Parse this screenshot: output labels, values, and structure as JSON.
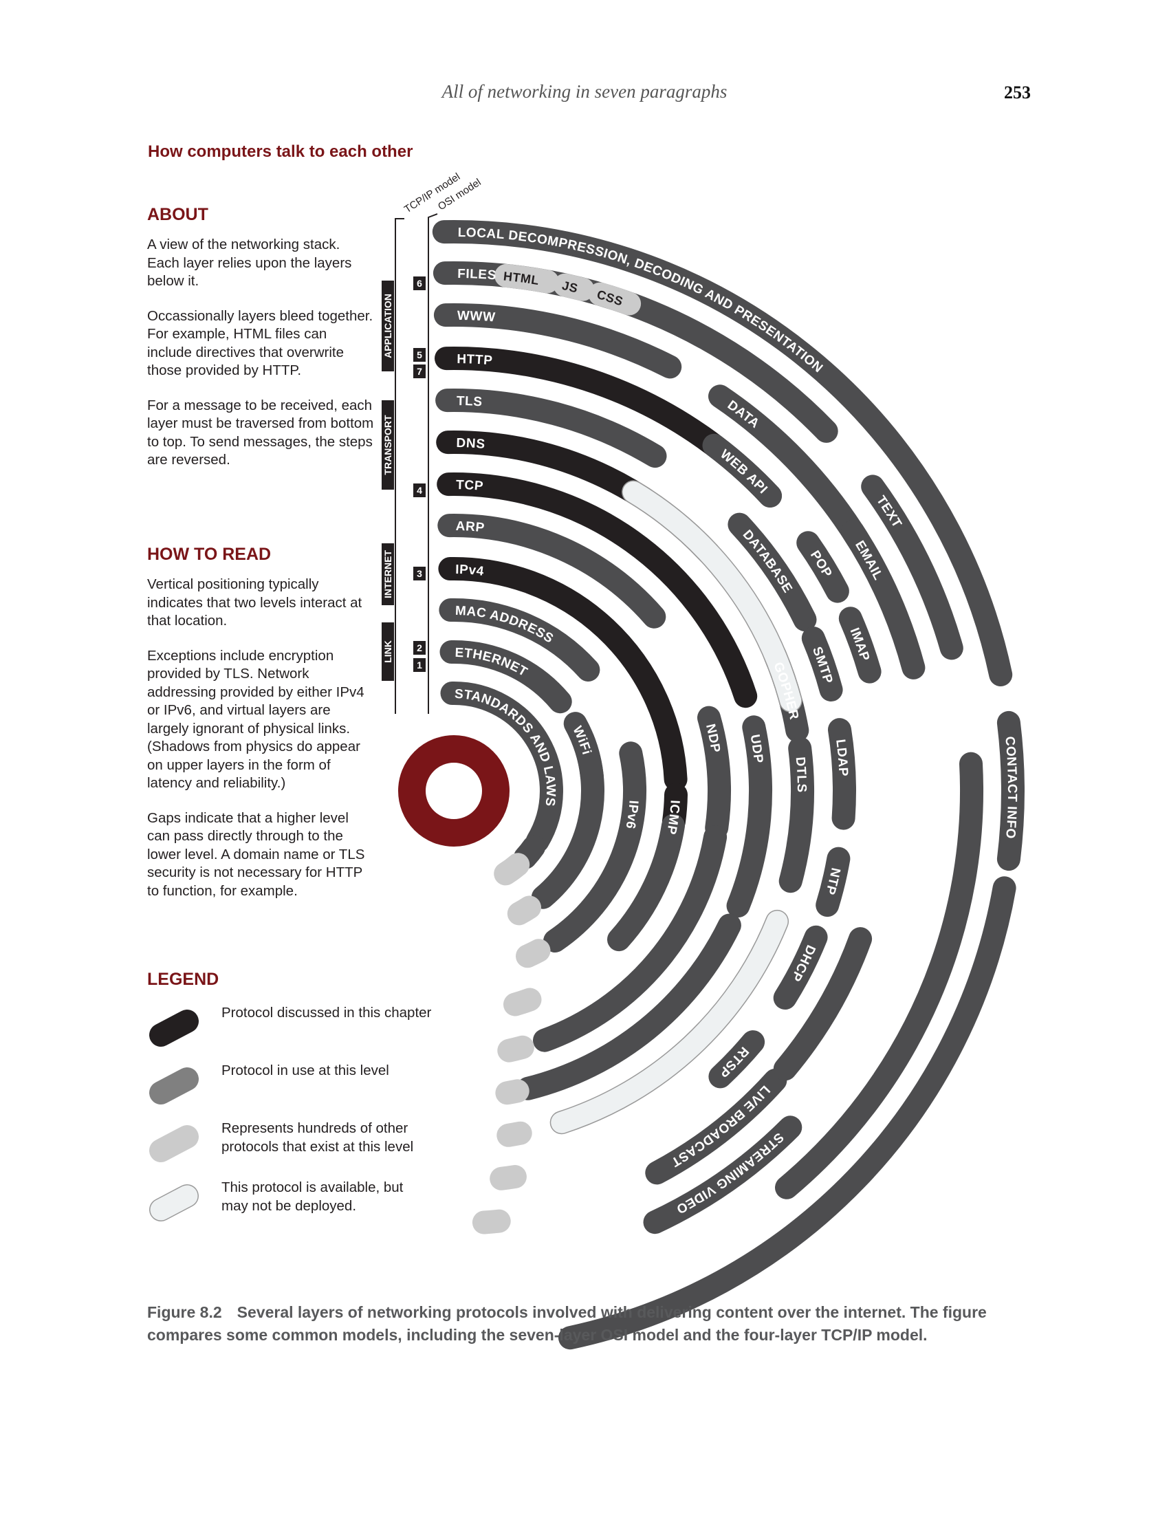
{
  "header": {
    "running_title": "All of networking in seven paragraphs",
    "page_number": "253"
  },
  "figure_title": "How computers talk to each other",
  "about": {
    "heading": "ABOUT",
    "p1": "A view of the networking stack. Each layer relies upon the layers below it.",
    "p2": "Occassionally layers bleed together. For example, HTML files can include directives that overwrite those provided by HTTP.",
    "p3": "For a message to be received, each layer must be traversed from bottom to top. To send messages, the steps are reversed."
  },
  "how_to_read": {
    "heading": "HOW TO READ",
    "p1": "Vertical positioning typically indicates that two levels interact at that location.",
    "p2": "Exceptions include encryption provided by TLS. Network addressing provided by either IPv4 or IPv6, and virtual layers are largely ignorant of physical links. (Shadows from physics do appear on upper layers in the form of latency and reliability.)",
    "p3": "Gaps indicate that a higher level can pass directly through to the lower level. A domain name or TLS security is not necessary for HTTP to function, for example."
  },
  "legend": {
    "heading": "LEGEND",
    "items": [
      {
        "label": "Protocol discussed in this chapter",
        "kind": "discussed"
      },
      {
        "label": "Protocol in use at this level",
        "kind": "in_use"
      },
      {
        "label": "Represents hundreds of other protocols that exist at this level",
        "kind": "others"
      },
      {
        "label": "This protocol is available, but may not be deployed.",
        "kind": "available"
      }
    ]
  },
  "colors": {
    "discussed": "#231f20",
    "in_use": "#4d4d4f",
    "others": "#cbcbcb",
    "available": "#eef1f2",
    "accent": "#7a1518",
    "label_light": "#ffffff"
  },
  "models": {
    "tcpip_label": "TCP/IP model",
    "osi_label": "OSI model",
    "tcpip_layers": [
      "APPLICATION",
      "TRANSPORT",
      "INTERNET",
      "LINK"
    ],
    "osi_numbers": [
      "6",
      "5",
      "7",
      "4",
      "3",
      "2",
      "1"
    ]
  },
  "protocols": [
    {
      "label": "LOCAL DECOMPRESSION, DECODING AND PRESENTATION",
      "kind": "in_use"
    },
    {
      "label": "FILES",
      "kind": "in_use"
    },
    {
      "label": "HTML",
      "kind": "others"
    },
    {
      "label": "JS",
      "kind": "others"
    },
    {
      "label": "CSS",
      "kind": "others"
    },
    {
      "label": "WWW",
      "kind": "in_use"
    },
    {
      "label": "HTTP",
      "kind": "discussed"
    },
    {
      "label": "TLS",
      "kind": "in_use"
    },
    {
      "label": "DNS",
      "kind": "discussed"
    },
    {
      "label": "TCP",
      "kind": "discussed"
    },
    {
      "label": "ARP",
      "kind": "in_use"
    },
    {
      "label": "IPv4",
      "kind": "discussed"
    },
    {
      "label": "MAC ADDRESS",
      "kind": "in_use"
    },
    {
      "label": "ETHERNET",
      "kind": "in_use"
    },
    {
      "label": "STANDARDS AND LAWS",
      "kind": "in_use"
    },
    {
      "label": "DATA",
      "kind": "in_use"
    },
    {
      "label": "WEB API",
      "kind": "in_use"
    },
    {
      "label": "DATABASE",
      "kind": "in_use"
    },
    {
      "label": "TEXT",
      "kind": "in_use"
    },
    {
      "label": "EMAIL",
      "kind": "in_use"
    },
    {
      "label": "POP",
      "kind": "in_use"
    },
    {
      "label": "SMTP",
      "kind": "in_use"
    },
    {
      "label": "IMAP",
      "kind": "in_use"
    },
    {
      "label": "GOPHER",
      "kind": "in_use"
    },
    {
      "label": "LDAP",
      "kind": "in_use"
    },
    {
      "label": "CONTACT INFO",
      "kind": "in_use"
    },
    {
      "label": "WiFi",
      "kind": "in_use"
    },
    {
      "label": "ICMP",
      "kind": "discussed"
    },
    {
      "label": "IPv6",
      "kind": "in_use"
    },
    {
      "label": "NDP",
      "kind": "in_use"
    },
    {
      "label": "UDP",
      "kind": "in_use"
    },
    {
      "label": "DTLS",
      "kind": "in_use"
    },
    {
      "label": "NTP",
      "kind": "in_use"
    },
    {
      "label": "DHCP",
      "kind": "in_use"
    },
    {
      "label": "RTSP",
      "kind": "in_use"
    },
    {
      "label": "LIVE BROADCAST",
      "kind": "in_use"
    },
    {
      "label": "STREAMING VIDEO",
      "kind": "in_use"
    }
  ],
  "caption": {
    "number": "Figure 8.2",
    "text": "Several layers of networking protocols involved with delivering content over the internet. The figure compares some common models, including the seven-layer OSI model and the four-layer TCP/IP model."
  }
}
